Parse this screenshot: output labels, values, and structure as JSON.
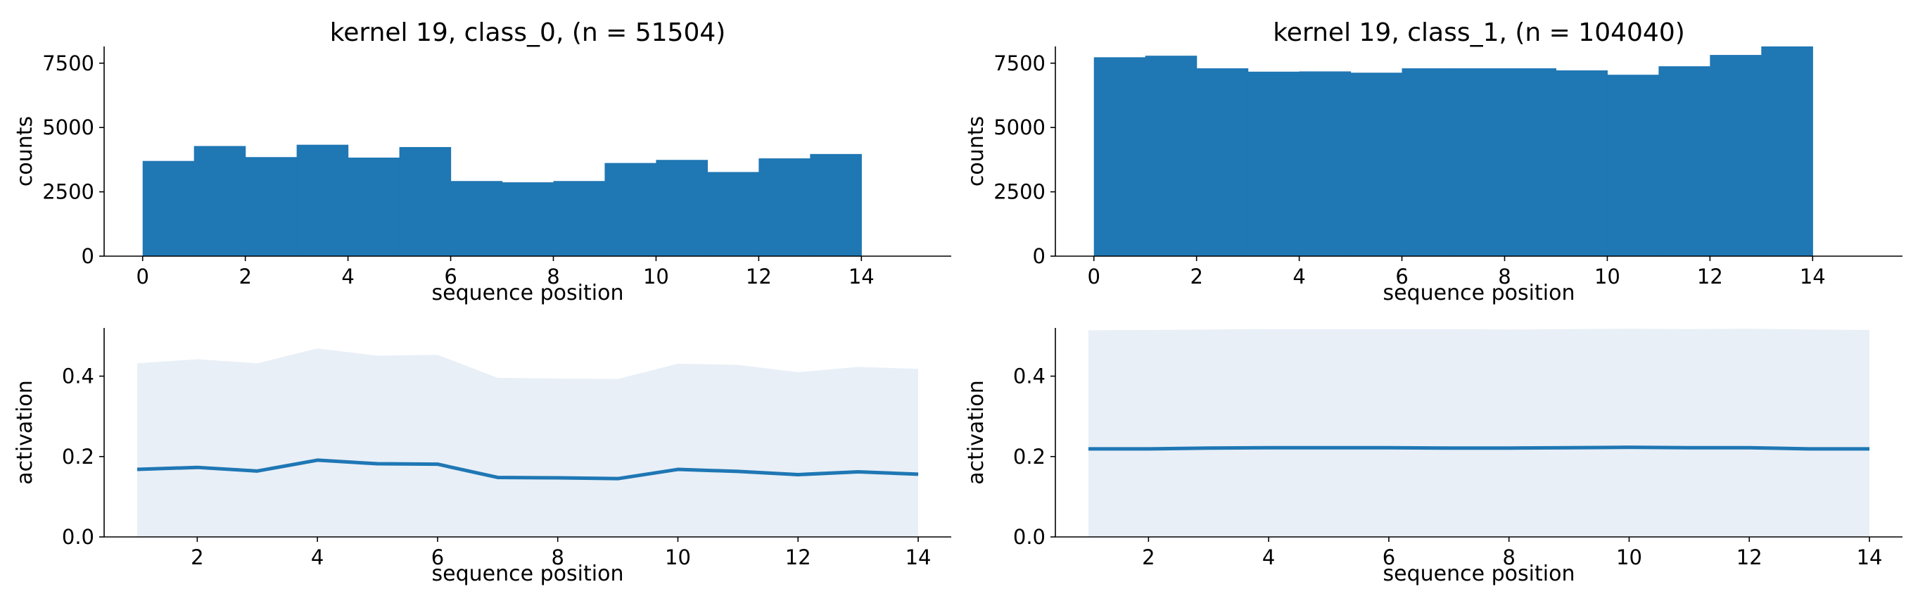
{
  "colors": {
    "bar": "#1f77b4",
    "line": "#1f77b4",
    "band": "#e8eff7",
    "axis": "#000000"
  },
  "chart_data": [
    {
      "id": "hist-class0",
      "type": "bar",
      "title": "kernel 19, class_0, (n = 51504)",
      "xlabel": "sequence position",
      "ylabel": "counts",
      "xlim": [
        -0.75,
        15.75
      ],
      "ylim": [
        0,
        8150
      ],
      "xticks": [
        0,
        2,
        4,
        6,
        8,
        10,
        12,
        14
      ],
      "yticks": [
        0,
        2500,
        5000,
        7500
      ],
      "bin_edges": [
        0,
        1,
        2,
        3,
        4,
        5,
        6,
        7,
        8,
        9,
        10,
        11,
        12,
        13,
        14
      ],
      "values": [
        3700,
        4280,
        3850,
        4330,
        3830,
        4240,
        2920,
        2870,
        2920,
        3620,
        3740,
        3270,
        3800,
        3970
      ],
      "grid": false
    },
    {
      "id": "hist-class1",
      "type": "bar",
      "title": "kernel 19, class_1, (n = 104040)",
      "xlabel": "sequence position",
      "ylabel": "counts",
      "xlim": [
        -0.75,
        15.75
      ],
      "ylim": [
        0,
        8150
      ],
      "xticks": [
        0,
        2,
        4,
        6,
        8,
        10,
        12,
        14
      ],
      "yticks": [
        0,
        2500,
        5000,
        7500
      ],
      "bin_edges": [
        0,
        1,
        2,
        3,
        4,
        5,
        6,
        7,
        8,
        9,
        10,
        11,
        12,
        13,
        14
      ],
      "values": [
        7730,
        7790,
        7300,
        7170,
        7180,
        7130,
        7300,
        7300,
        7300,
        7220,
        7050,
        7380,
        7820,
        8150
      ],
      "grid": false
    },
    {
      "id": "act-class0",
      "type": "area",
      "title": "",
      "xlabel": "sequence position",
      "ylabel": "activation",
      "xlim": [
        0.45,
        14.55
      ],
      "ylim": [
        0,
        0.52
      ],
      "xticks": [
        2,
        4,
        6,
        8,
        10,
        12,
        14
      ],
      "yticks": [
        0.0,
        0.2,
        0.4
      ],
      "x": [
        1,
        2,
        3,
        4,
        5,
        6,
        7,
        8,
        9,
        10,
        11,
        12,
        13,
        14
      ],
      "mean": [
        0.168,
        0.173,
        0.164,
        0.191,
        0.182,
        0.181,
        0.148,
        0.147,
        0.145,
        0.168,
        0.163,
        0.155,
        0.162,
        0.156
      ],
      "upper": [
        0.432,
        0.442,
        0.432,
        0.469,
        0.451,
        0.453,
        0.396,
        0.394,
        0.393,
        0.431,
        0.428,
        0.41,
        0.423,
        0.418
      ],
      "lower": [
        0,
        0,
        0,
        0,
        0,
        0,
        0,
        0,
        0,
        0,
        0,
        0,
        0,
        0
      ],
      "grid": false
    },
    {
      "id": "act-class1",
      "type": "area",
      "title": "",
      "xlabel": "sequence position",
      "ylabel": "activation",
      "xlim": [
        0.45,
        14.55
      ],
      "ylim": [
        0,
        0.52
      ],
      "xticks": [
        2,
        4,
        6,
        8,
        10,
        12,
        14
      ],
      "yticks": [
        0.0,
        0.2,
        0.4
      ],
      "x": [
        1,
        2,
        3,
        4,
        5,
        6,
        7,
        8,
        9,
        10,
        11,
        12,
        13,
        14
      ],
      "mean": [
        0.219,
        0.219,
        0.221,
        0.222,
        0.222,
        0.222,
        0.221,
        0.221,
        0.222,
        0.223,
        0.222,
        0.222,
        0.219,
        0.219
      ],
      "upper": [
        0.514,
        0.515,
        0.516,
        0.517,
        0.517,
        0.517,
        0.517,
        0.516,
        0.517,
        0.518,
        0.517,
        0.518,
        0.516,
        0.515
      ],
      "lower": [
        0,
        0,
        0,
        0,
        0,
        0,
        0,
        0,
        0,
        0,
        0,
        0,
        0,
        0
      ],
      "grid": false
    }
  ]
}
